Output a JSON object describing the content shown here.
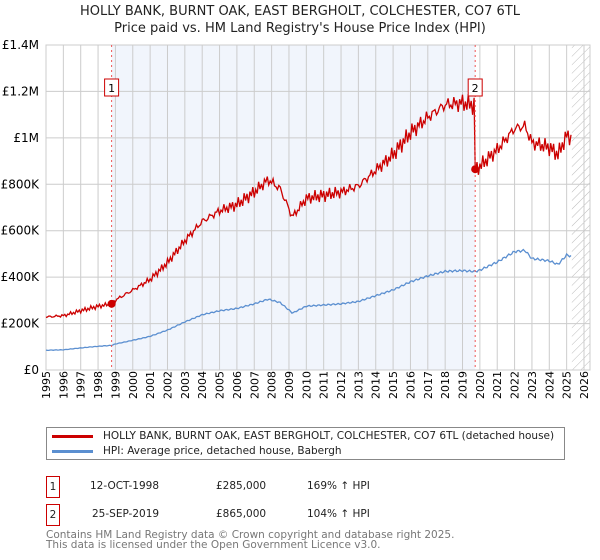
{
  "title": "HOLLY BANK, BURNT OAK, EAST BERGHOLT, COLCHESTER, CO7 6TL",
  "subtitle": "Price paid vs. HM Land Registry's House Price Index (HPI)",
  "chart_data": {
    "type": "line",
    "ylim": [
      0,
      1400000
    ],
    "xlim": [
      1995,
      2026
    ],
    "y_ticks": [
      {
        "v": 0,
        "label": "£0"
      },
      {
        "v": 200000,
        "label": "£200K"
      },
      {
        "v": 400000,
        "label": "£400K"
      },
      {
        "v": 600000,
        "label": "£600K"
      },
      {
        "v": 800000,
        "label": "£800K"
      },
      {
        "v": 1000000,
        "label": "£1M"
      },
      {
        "v": 1200000,
        "label": "£1.2M"
      },
      {
        "v": 1400000,
        "label": "£1.4M"
      }
    ],
    "x_ticks": [
      1995,
      1996,
      1997,
      1998,
      1999,
      2000,
      2001,
      2002,
      2003,
      2004,
      2005,
      2006,
      2007,
      2008,
      2009,
      2010,
      2011,
      2012,
      2013,
      2014,
      2015,
      2016,
      2017,
      2018,
      2019,
      2020,
      2021,
      2022,
      2023,
      2024,
      2025,
      2026
    ],
    "hpi": {
      "name": "HPI: Average price, detached house, Babergh",
      "color": "#5b8fd0",
      "x": [
        1995,
        1996,
        1997,
        1998,
        1998.78,
        1999,
        2000,
        2001,
        2002,
        2003,
        2004,
        2005,
        2006,
        2007,
        2007.8,
        2008.5,
        2009.2,
        2010,
        2011,
        2012,
        2013,
        2014,
        2015,
        2016,
        2017,
        2018,
        2019,
        2019.73,
        2020,
        2021,
        2022,
        2022.6,
        2023,
        2024,
        2024.5,
        2025,
        2025.3
      ],
      "y": [
        85000,
        87000,
        95000,
        102000,
        106000,
        112000,
        128000,
        145000,
        172000,
        207000,
        238000,
        255000,
        265000,
        285000,
        305000,
        290000,
        245000,
        275000,
        280000,
        285000,
        295000,
        320000,
        345000,
        380000,
        405000,
        425000,
        428000,
        424000,
        430000,
        465000,
        510000,
        515000,
        480000,
        470000,
        455000,
        495000,
        490000
      ]
    },
    "property": {
      "name": "HOLLY BANK, BURNT OAK, EAST BERGHOLT, COLCHESTER, CO7 6TL (detached house)",
      "color": "#cc0000"
    },
    "sales": [
      {
        "id": "1",
        "x": 1998.78,
        "price": 285000
      },
      {
        "id": "2",
        "x": 2019.73,
        "price": 865000
      }
    ],
    "shaded_range": [
      1998.78,
      2019.73
    ],
    "hatched_from": 2025.3
  },
  "legend": {
    "property": "HOLLY BANK, BURNT OAK, EAST BERGHOLT, COLCHESTER, CO7 6TL (detached house)",
    "hpi": "HPI: Average price, detached house, Babergh"
  },
  "sales_table": [
    {
      "id": "1",
      "date": "12-OCT-1998",
      "price": "£285,000",
      "hpi": "169% ↑ HPI"
    },
    {
      "id": "2",
      "date": "25-SEP-2019",
      "price": "£865,000",
      "hpi": "104% ↑ HPI"
    }
  ],
  "footer": [
    "Contains HM Land Registry data © Crown copyright and database right 2025.",
    "This data is licensed under the Open Government Licence v3.0."
  ]
}
